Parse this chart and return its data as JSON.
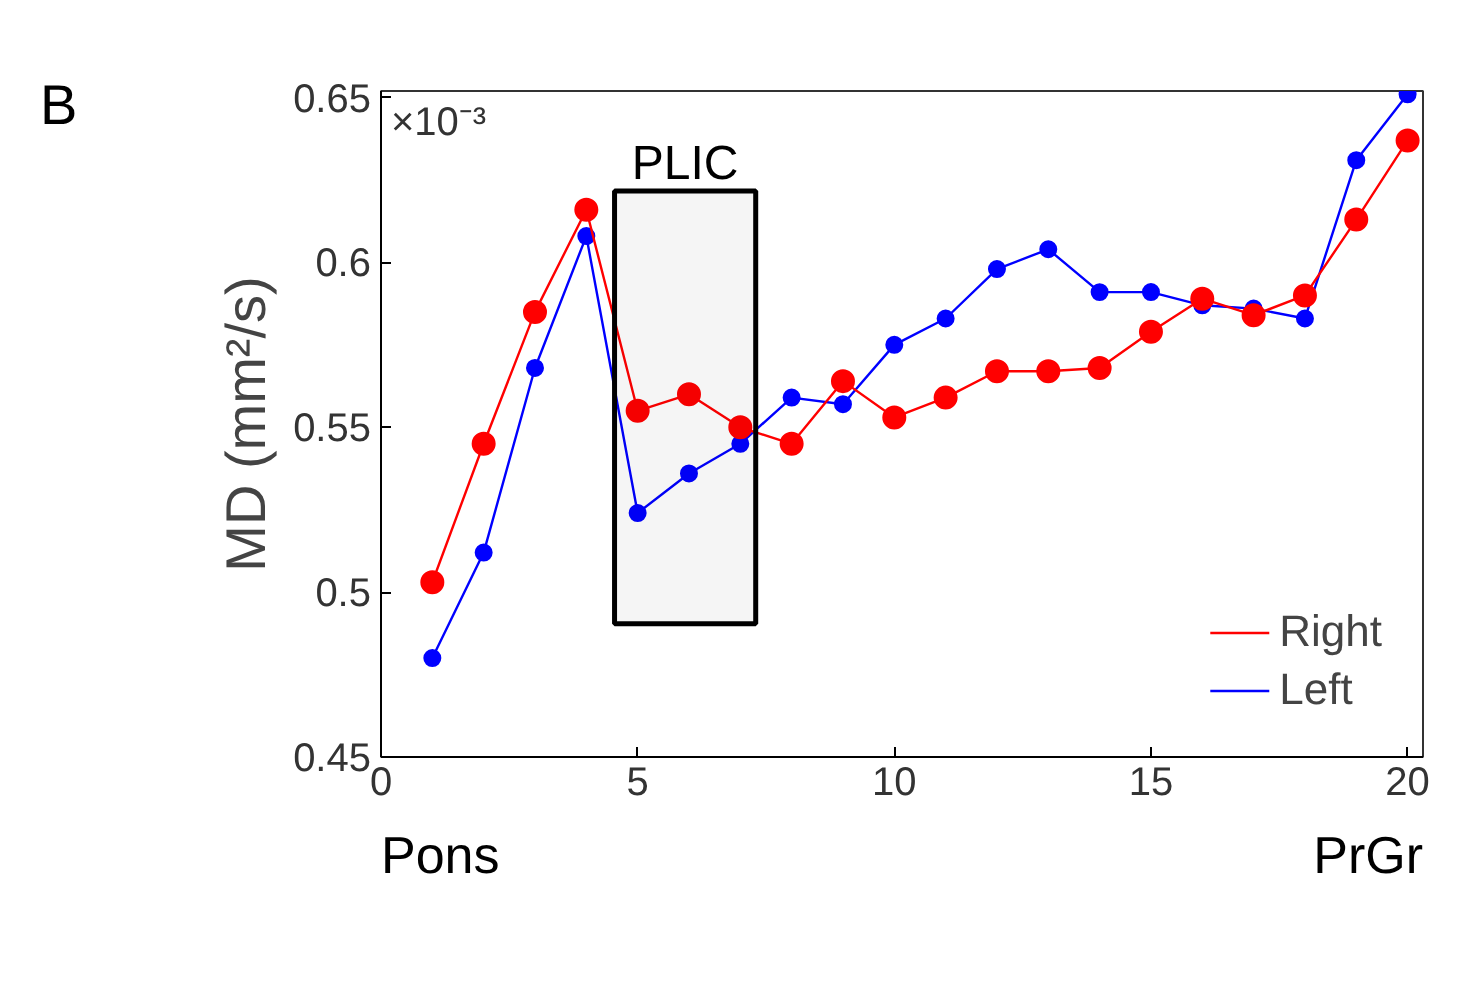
{
  "chart_data": {
    "type": "line",
    "title": "B",
    "ylabel": "MD (mm²/s)",
    "x": [
      1,
      2,
      3,
      4,
      5,
      6,
      7,
      8,
      9,
      10,
      11,
      12,
      13,
      14,
      15,
      16,
      17,
      18,
      19,
      20
    ],
    "series": [
      {
        "name": "Right",
        "color": "#ff0000",
        "values": [
          0.503,
          0.545,
          0.585,
          0.616,
          0.555,
          0.56,
          0.55,
          0.545,
          0.564,
          0.553,
          0.559,
          0.567,
          0.567,
          0.568,
          0.579,
          0.589,
          0.584,
          0.59,
          0.613,
          0.637
        ]
      },
      {
        "name": "Left",
        "color": "#0000ff",
        "values": [
          0.48,
          0.512,
          0.568,
          0.608,
          0.524,
          0.536,
          0.545,
          0.559,
          0.557,
          0.575,
          0.583,
          0.598,
          0.604,
          0.591,
          0.591,
          0.587,
          0.586,
          0.583,
          0.631,
          0.651
        ]
      }
    ],
    "xlim": [
      0,
      20.3
    ],
    "xticks": [
      0,
      5,
      10,
      15,
      20
    ],
    "ylim": [
      0.45,
      0.652
    ],
    "yticks": [
      0.45,
      0.5,
      0.55,
      0.6,
      0.65
    ],
    "bands": [
      {
        "axis": "x",
        "from": 4.55,
        "to": 7.3,
        "label": "PLIC",
        "color": "#000000"
      }
    ],
    "annotations": [
      "×10⁻³",
      "Pons",
      "PrGr"
    ],
    "marker": "circle",
    "line_style": "solid",
    "grid": false,
    "legend": "bottom right"
  }
}
